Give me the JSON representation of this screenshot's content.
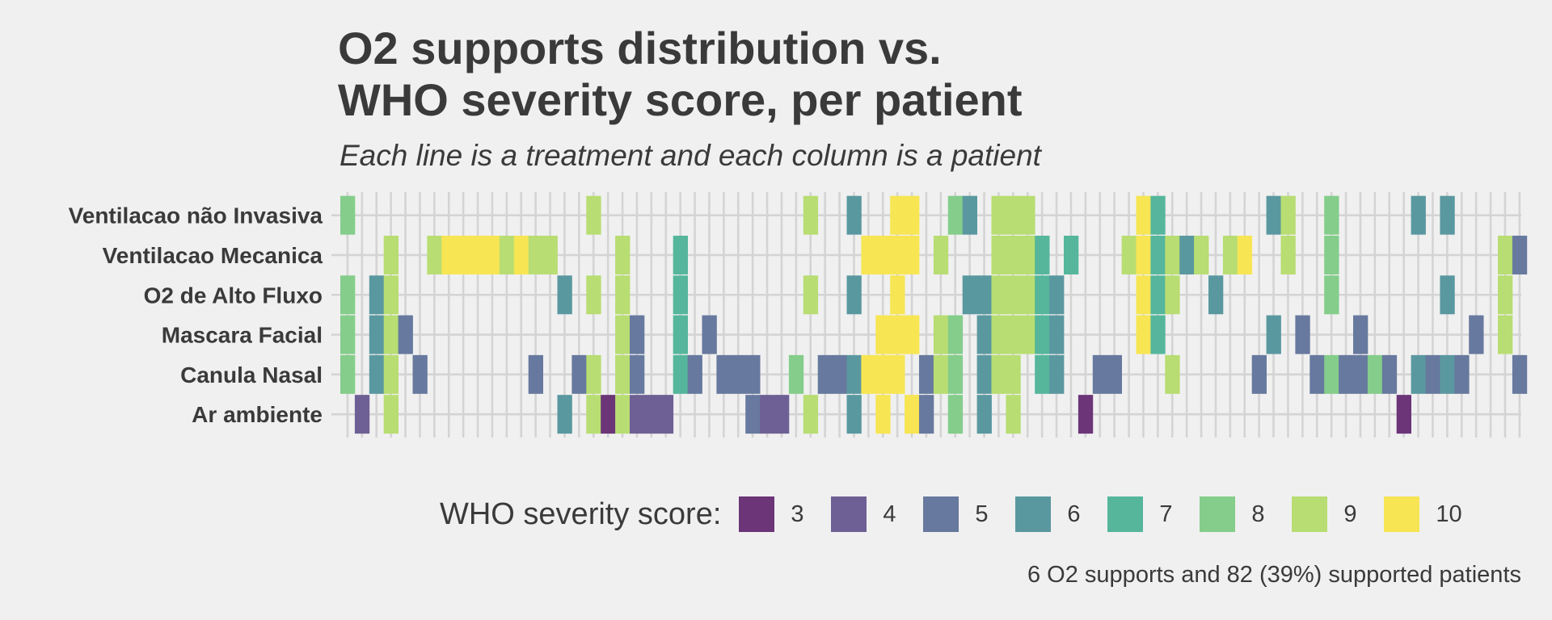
{
  "chart_data": {
    "type": "heatmap",
    "title_line1": "O2 supports distribution vs.",
    "title_line2": "WHO severity score, per patient",
    "subtitle": "Each line is a treatment and each column is a patient",
    "caption": "6 O2 supports and 82 (39%) supported patients",
    "legend_title": "WHO severity score:",
    "legend": [
      {
        "value": 3,
        "label": "3",
        "color": "#6b3578"
      },
      {
        "value": 4,
        "label": "4",
        "color": "#6e6095"
      },
      {
        "value": 5,
        "label": "5",
        "color": "#67799e"
      },
      {
        "value": 6,
        "label": "6",
        "color": "#5a98a0"
      },
      {
        "value": 7,
        "label": "7",
        "color": "#55b69c"
      },
      {
        "value": 8,
        "label": "8",
        "color": "#84cd8a"
      },
      {
        "value": 9,
        "label": "9",
        "color": "#b8dd72"
      },
      {
        "value": 10,
        "label": "10",
        "color": "#f7e553"
      }
    ],
    "rows": [
      "Ventilacao não Invasiva",
      "Ventilacao Mecanica",
      "O2 de Alto Fluxo",
      "Mascara Facial",
      "Canula Nasal",
      "Ar ambiente"
    ],
    "n_patients": 82,
    "cells": [
      [
        0,
        0,
        8
      ],
      [
        0,
        2,
        8
      ],
      [
        0,
        3,
        8
      ],
      [
        0,
        4,
        8
      ],
      [
        1,
        5,
        4
      ],
      [
        2,
        2,
        6
      ],
      [
        2,
        3,
        6
      ],
      [
        2,
        4,
        6
      ],
      [
        3,
        1,
        9
      ],
      [
        3,
        2,
        9
      ],
      [
        3,
        3,
        9
      ],
      [
        3,
        4,
        9
      ],
      [
        3,
        5,
        9
      ],
      [
        4,
        3,
        5
      ],
      [
        5,
        4,
        5
      ],
      [
        6,
        1,
        9
      ],
      [
        7,
        1,
        10
      ],
      [
        8,
        1,
        10
      ],
      [
        9,
        1,
        10
      ],
      [
        10,
        1,
        10
      ],
      [
        11,
        1,
        9
      ],
      [
        12,
        1,
        10
      ],
      [
        13,
        1,
        9
      ],
      [
        13,
        4,
        5
      ],
      [
        14,
        1,
        9
      ],
      [
        15,
        2,
        6
      ],
      [
        15,
        5,
        6
      ],
      [
        16,
        4,
        5
      ],
      [
        17,
        0,
        9
      ],
      [
        17,
        2,
        9
      ],
      [
        17,
        4,
        9
      ],
      [
        17,
        5,
        9
      ],
      [
        18,
        5,
        3
      ],
      [
        19,
        1,
        9
      ],
      [
        19,
        2,
        9
      ],
      [
        19,
        3,
        9
      ],
      [
        19,
        4,
        9
      ],
      [
        19,
        5,
        9
      ],
      [
        20,
        3,
        5
      ],
      [
        20,
        4,
        5
      ],
      [
        20,
        5,
        4
      ],
      [
        21,
        5,
        4
      ],
      [
        22,
        5,
        4
      ],
      [
        23,
        1,
        7
      ],
      [
        23,
        2,
        7
      ],
      [
        23,
        3,
        7
      ],
      [
        23,
        4,
        7
      ],
      [
        24,
        4,
        5
      ],
      [
        25,
        3,
        5
      ],
      [
        26,
        4,
        5
      ],
      [
        27,
        4,
        5
      ],
      [
        28,
        4,
        5
      ],
      [
        28,
        5,
        5
      ],
      [
        29,
        5,
        4
      ],
      [
        30,
        5,
        4
      ],
      [
        31,
        4,
        8
      ],
      [
        32,
        0,
        9
      ],
      [
        32,
        2,
        9
      ],
      [
        32,
        5,
        9
      ],
      [
        33,
        4,
        5
      ],
      [
        34,
        4,
        5
      ],
      [
        35,
        0,
        6
      ],
      [
        35,
        2,
        6
      ],
      [
        35,
        4,
        6
      ],
      [
        35,
        5,
        6
      ],
      [
        36,
        1,
        10
      ],
      [
        36,
        4,
        10
      ],
      [
        37,
        1,
        10
      ],
      [
        37,
        3,
        10
      ],
      [
        37,
        4,
        10
      ],
      [
        37,
        5,
        10
      ],
      [
        38,
        0,
        10
      ],
      [
        38,
        1,
        10
      ],
      [
        38,
        2,
        10
      ],
      [
        38,
        3,
        10
      ],
      [
        38,
        4,
        10
      ],
      [
        39,
        0,
        10
      ],
      [
        39,
        1,
        10
      ],
      [
        39,
        3,
        10
      ],
      [
        39,
        5,
        10
      ],
      [
        40,
        4,
        5
      ],
      [
        40,
        5,
        5
      ],
      [
        41,
        1,
        9
      ],
      [
        41,
        3,
        9
      ],
      [
        41,
        4,
        9
      ],
      [
        42,
        0,
        8
      ],
      [
        42,
        3,
        8
      ],
      [
        42,
        4,
        8
      ],
      [
        42,
        5,
        8
      ],
      [
        43,
        0,
        6
      ],
      [
        43,
        2,
        6
      ],
      [
        44,
        2,
        6
      ],
      [
        44,
        3,
        6
      ],
      [
        44,
        4,
        6
      ],
      [
        44,
        5,
        6
      ],
      [
        45,
        0,
        9
      ],
      [
        45,
        1,
        9
      ],
      [
        45,
        2,
        9
      ],
      [
        45,
        3,
        9
      ],
      [
        45,
        4,
        9
      ],
      [
        46,
        0,
        9
      ],
      [
        46,
        1,
        9
      ],
      [
        46,
        2,
        9
      ],
      [
        46,
        3,
        9
      ],
      [
        46,
        4,
        9
      ],
      [
        46,
        5,
        9
      ],
      [
        47,
        0,
        9
      ],
      [
        47,
        1,
        9
      ],
      [
        47,
        2,
        9
      ],
      [
        47,
        3,
        9
      ],
      [
        48,
        1,
        7
      ],
      [
        48,
        2,
        7
      ],
      [
        48,
        3,
        7
      ],
      [
        48,
        4,
        7
      ],
      [
        49,
        2,
        6
      ],
      [
        49,
        3,
        6
      ],
      [
        49,
        4,
        6
      ],
      [
        50,
        1,
        7
      ],
      [
        51,
        5,
        3
      ],
      [
        52,
        4,
        5
      ],
      [
        53,
        4,
        5
      ],
      [
        54,
        1,
        9
      ],
      [
        55,
        0,
        10
      ],
      [
        55,
        1,
        10
      ],
      [
        55,
        2,
        10
      ],
      [
        55,
        3,
        10
      ],
      [
        56,
        0,
        7
      ],
      [
        56,
        1,
        7
      ],
      [
        56,
        2,
        7
      ],
      [
        56,
        3,
        7
      ],
      [
        57,
        1,
        9
      ],
      [
        57,
        2,
        9
      ],
      [
        57,
        4,
        9
      ],
      [
        58,
        1,
        6
      ],
      [
        59,
        1,
        9
      ],
      [
        60,
        2,
        6
      ],
      [
        61,
        1,
        9
      ],
      [
        62,
        1,
        10
      ],
      [
        63,
        4,
        5
      ],
      [
        64,
        0,
        6
      ],
      [
        64,
        3,
        6
      ],
      [
        65,
        0,
        9
      ],
      [
        65,
        1,
        9
      ],
      [
        66,
        3,
        5
      ],
      [
        67,
        4,
        5
      ],
      [
        68,
        0,
        8
      ],
      [
        68,
        1,
        8
      ],
      [
        68,
        2,
        8
      ],
      [
        68,
        4,
        8
      ],
      [
        69,
        4,
        5
      ],
      [
        70,
        3,
        5
      ],
      [
        70,
        4,
        5
      ],
      [
        71,
        4,
        8
      ],
      [
        72,
        4,
        5
      ],
      [
        73,
        5,
        3
      ],
      [
        74,
        0,
        6
      ],
      [
        74,
        4,
        6
      ],
      [
        75,
        4,
        5
      ],
      [
        76,
        0,
        6
      ],
      [
        76,
        2,
        6
      ],
      [
        76,
        4,
        6
      ],
      [
        77,
        4,
        5
      ],
      [
        78,
        3,
        5
      ],
      [
        80,
        1,
        9
      ],
      [
        80,
        2,
        9
      ],
      [
        80,
        3,
        9
      ],
      [
        81,
        1,
        5
      ],
      [
        81,
        4,
        5
      ]
    ]
  }
}
